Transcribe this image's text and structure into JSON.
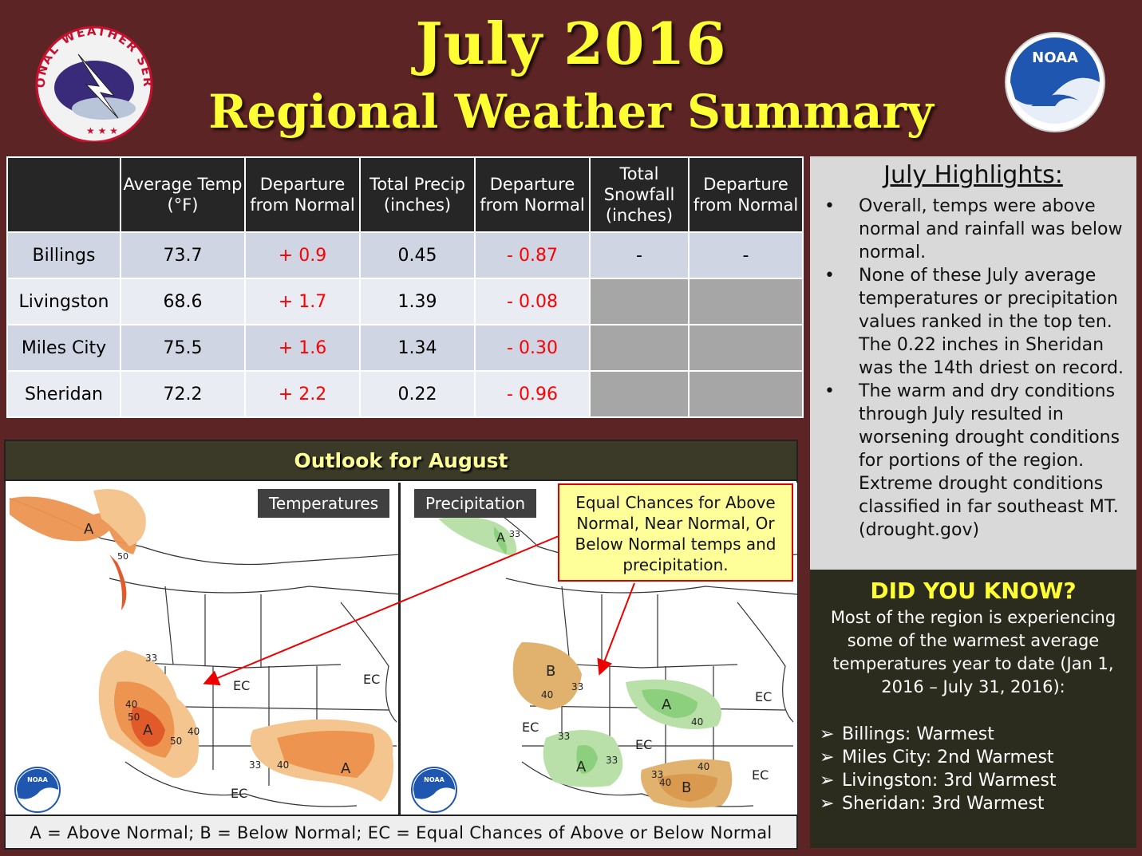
{
  "title": "July 2016",
  "subtitle": "Regional Weather Summary",
  "logos": {
    "left": "NATIONAL WEATHER SERVICE",
    "right": "NOAA"
  },
  "table": {
    "headers": [
      "",
      "Average Temp (°F)",
      "Departure from Normal",
      "Total Precip (inches)",
      "Departure from Normal",
      "Total Snowfall (inches)",
      "Departure from Normal"
    ],
    "rows": [
      {
        "city": "Billings",
        "avg_temp": "73.7",
        "temp_dep": "+ 0.9",
        "precip": "0.45",
        "precip_dep": "- 0.87",
        "snow": "-",
        "snow_dep": "-"
      },
      {
        "city": "Livingston",
        "avg_temp": "68.6",
        "temp_dep": "+ 1.7",
        "precip": "1.39",
        "precip_dep": "- 0.08",
        "snow": "",
        "snow_dep": ""
      },
      {
        "city": "Miles City",
        "avg_temp": "75.5",
        "temp_dep": "+ 1.6",
        "precip": "1.34",
        "precip_dep": "- 0.30",
        "snow": "",
        "snow_dep": ""
      },
      {
        "city": "Sheridan",
        "avg_temp": "72.2",
        "temp_dep": "+ 2.2",
        "precip": "0.22",
        "precip_dep": "- 0.96",
        "snow": "",
        "snow_dep": ""
      }
    ]
  },
  "outlook": {
    "title": "Outlook for August",
    "temp_label": "Temperatures",
    "precip_label": "Precipitation",
    "callout": "Equal Chances for Above Normal, Near Normal, Or Below Normal temps and precipitation.",
    "legend": "A = Above Normal;  B = Below Normal;  EC = Equal Chances of Above or Below Normal",
    "map_labels": {
      "above": "A",
      "below": "B",
      "ec": "EC",
      "c33": "33",
      "c40": "40",
      "c50": "50",
      "noaa": "NOAA"
    },
    "colors": {
      "above_light": "#f4c58f",
      "above_mid": "#ec9450",
      "above_dark": "#e05a2a",
      "below": "#e1b26e",
      "wet_light": "#b8e0a8",
      "wet_mid": "#8ccf7c"
    }
  },
  "highlights": {
    "title": "July Highlights:",
    "items": [
      "Overall, temps were above normal and rainfall was below normal.",
      "None of these July average temperatures or precipitation values ranked in the top ten. The 0.22 inches in Sheridan was the 14th driest on record.",
      "The warm and dry conditions through July resulted in worsening drought conditions for portions of the region. Extreme drought conditions classified in far southeast MT. (drought.gov)"
    ]
  },
  "did_you_know": {
    "title": "DID YOU KNOW?",
    "body": "Most of the region is experiencing some of the warmest average temperatures year to date (Jan 1, 2016 – July 31, 2016):",
    "items": [
      "Billings: Warmest",
      "Miles City: 2nd Warmest",
      "Livingston: 3rd Warmest",
      "Sheridan: 3rd Warmest"
    ]
  }
}
